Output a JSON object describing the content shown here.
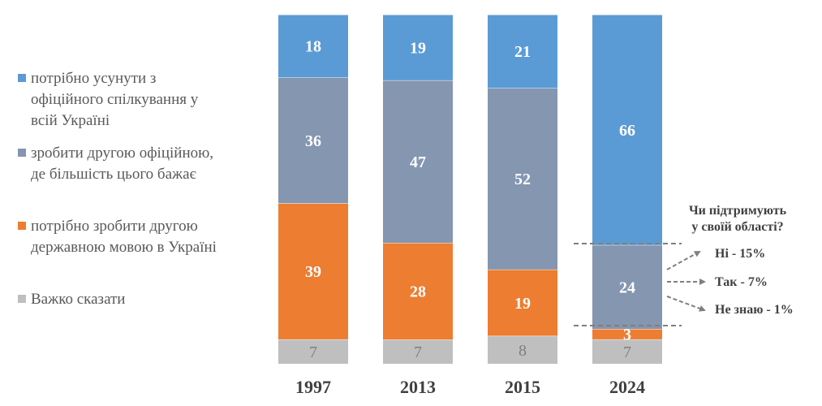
{
  "chart_data": {
    "type": "bar",
    "stacked": true,
    "percent": true,
    "categories": [
      "1997",
      "2013",
      "2015",
      "2024"
    ],
    "series": [
      {
        "name": "Важко сказати",
        "color": "#bfbfbf",
        "label_color": "#7f7f7f",
        "values": [
          7,
          7,
          8,
          7
        ]
      },
      {
        "name": "потрібно зробити другою державною мовою в Україні",
        "color": "#ed7d31",
        "label_color": "#ffffff",
        "values": [
          39,
          28,
          19,
          3
        ]
      },
      {
        "name": "зробити другою офіційною, де більшість цього бажає",
        "color": "#8496b0",
        "label_color": "#ffffff",
        "values": [
          36,
          47,
          52,
          24
        ]
      },
      {
        "name": "потрібно усунути з офіційного спілкування у всій Україні",
        "color": "#5b9bd5",
        "label_color": "#ffffff",
        "values": [
          18,
          19,
          21,
          66
        ]
      }
    ],
    "legend": {
      "position": "left",
      "entries": [
        {
          "label": "потрібно усунути з\nофіційного спілкування у\nвсій Україні",
          "color": "#5b9bd5"
        },
        {
          "label": "зробити другою офіційною,\nде більшість цього бажає",
          "color": "#8496b0"
        },
        {
          "label": "потрібно зробити другою\nдержавною мовою в Україні",
          "color": "#ed7d31"
        },
        {
          "label": "Важко сказати",
          "color": "#bfbfbf"
        }
      ]
    },
    "ylim": [
      0,
      100
    ],
    "grid": false,
    "title": "",
    "xlabel": "",
    "ylabel": "",
    "annotation": {
      "category": "2024",
      "segment": "зробити другою офіційною, де більшість цього бажає",
      "title_lines": [
        "Чи підтримують",
        "у своїй області?"
      ],
      "items": [
        "Ні - 15%",
        "Так - 7%",
        "Не знаю - 1%"
      ]
    }
  }
}
